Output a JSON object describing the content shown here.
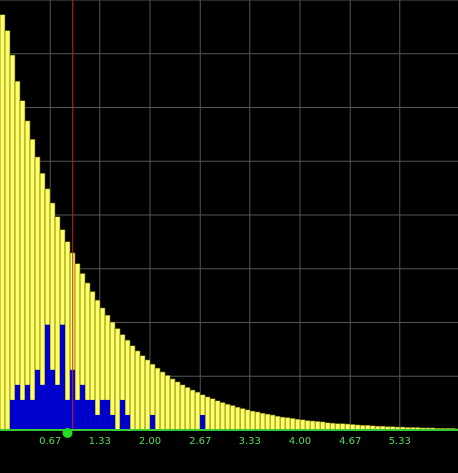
{
  "chart_data": {
    "type": "bar",
    "title": "",
    "xlabel": "",
    "ylabel": "",
    "xlim": [
      0,
      6.2
    ],
    "ylim": [
      0,
      1
    ],
    "grid": true,
    "x_tick_labels": [
      "0.67",
      "1.33",
      "2.00",
      "2.67",
      "3.33",
      "4.00",
      "4.67",
      "5.33"
    ],
    "x_ticks": [
      0.67,
      1.33,
      2.0,
      2.67,
      3.33,
      4.0,
      4.67,
      5.33
    ],
    "bin_width": 0.0667,
    "series": [
      {
        "role": "reference",
        "color": "#ffff66",
        "values": [
          0.966,
          0.929,
          0.872,
          0.811,
          0.766,
          0.719,
          0.676,
          0.635,
          0.597,
          0.561,
          0.528,
          0.496,
          0.466,
          0.438,
          0.412,
          0.387,
          0.364,
          0.342,
          0.322,
          0.302,
          0.284,
          0.267,
          0.251,
          0.236,
          0.222,
          0.209,
          0.196,
          0.184,
          0.173,
          0.163,
          0.153,
          0.144,
          0.135,
          0.127,
          0.119,
          0.112,
          0.105,
          0.099,
          0.093,
          0.088,
          0.082,
          0.077,
          0.073,
          0.068,
          0.064,
          0.06,
          0.057,
          0.053,
          0.05,
          0.047,
          0.044,
          0.042,
          0.039,
          0.037,
          0.035,
          0.032,
          0.03,
          0.029,
          0.027,
          0.025,
          0.024,
          0.022,
          0.021,
          0.02,
          0.019,
          0.017,
          0.016,
          0.015,
          0.015,
          0.014,
          0.013,
          0.012,
          0.011,
          0.011,
          0.01,
          0.009,
          0.009,
          0.008,
          0.008,
          0.007,
          0.007,
          0.006,
          0.006,
          0.006,
          0.005,
          0.005,
          0.005,
          0.004,
          0.004,
          0.004,
          0.004,
          0.003,
          0.003
        ]
      },
      {
        "role": "observed",
        "color": "#0000cc",
        "values": [
          0.0,
          0.0,
          0.07,
          0.105,
          0.07,
          0.105,
          0.07,
          0.14,
          0.105,
          0.245,
          0.14,
          0.105,
          0.245,
          0.07,
          0.14,
          0.07,
          0.105,
          0.07,
          0.07,
          0.035,
          0.07,
          0.07,
          0.035,
          0.0,
          0.07,
          0.035,
          0.0,
          0.0,
          0.0,
          0.0,
          0.035,
          0.0,
          0.0,
          0.0,
          0.0,
          0.0,
          0.0,
          0.0,
          0.0,
          0.0,
          0.035,
          0.0,
          0.0,
          0.0,
          0.0,
          0.0,
          0.0,
          0.0,
          0.0,
          0.0,
          0.0,
          0.0,
          0.0,
          0.0,
          0.0,
          0.0,
          0.0,
          0.0,
          0.0,
          0.0,
          0.0,
          0.0,
          0.0,
          0.0,
          0.0,
          0.0,
          0.0,
          0.0,
          0.0,
          0.0,
          0.0,
          0.0,
          0.0,
          0.0,
          0.0,
          0.0,
          0.0,
          0.0,
          0.0,
          0.0,
          0.0,
          0.0,
          0.0,
          0.0,
          0.0,
          0.0,
          0.0,
          0.0,
          0.0,
          0.0,
          0.0,
          0.0,
          0.0
        ]
      }
    ],
    "reference_line": {
      "x": 0.97,
      "color": "#cc2222"
    },
    "marker": {
      "x": 0.9,
      "color": "#22dd22"
    },
    "colors": {
      "background": "#000000",
      "grid": "#555555",
      "axis": "#33cc33",
      "tick_label": "#55dd55",
      "bar_outline": "#555500"
    }
  }
}
